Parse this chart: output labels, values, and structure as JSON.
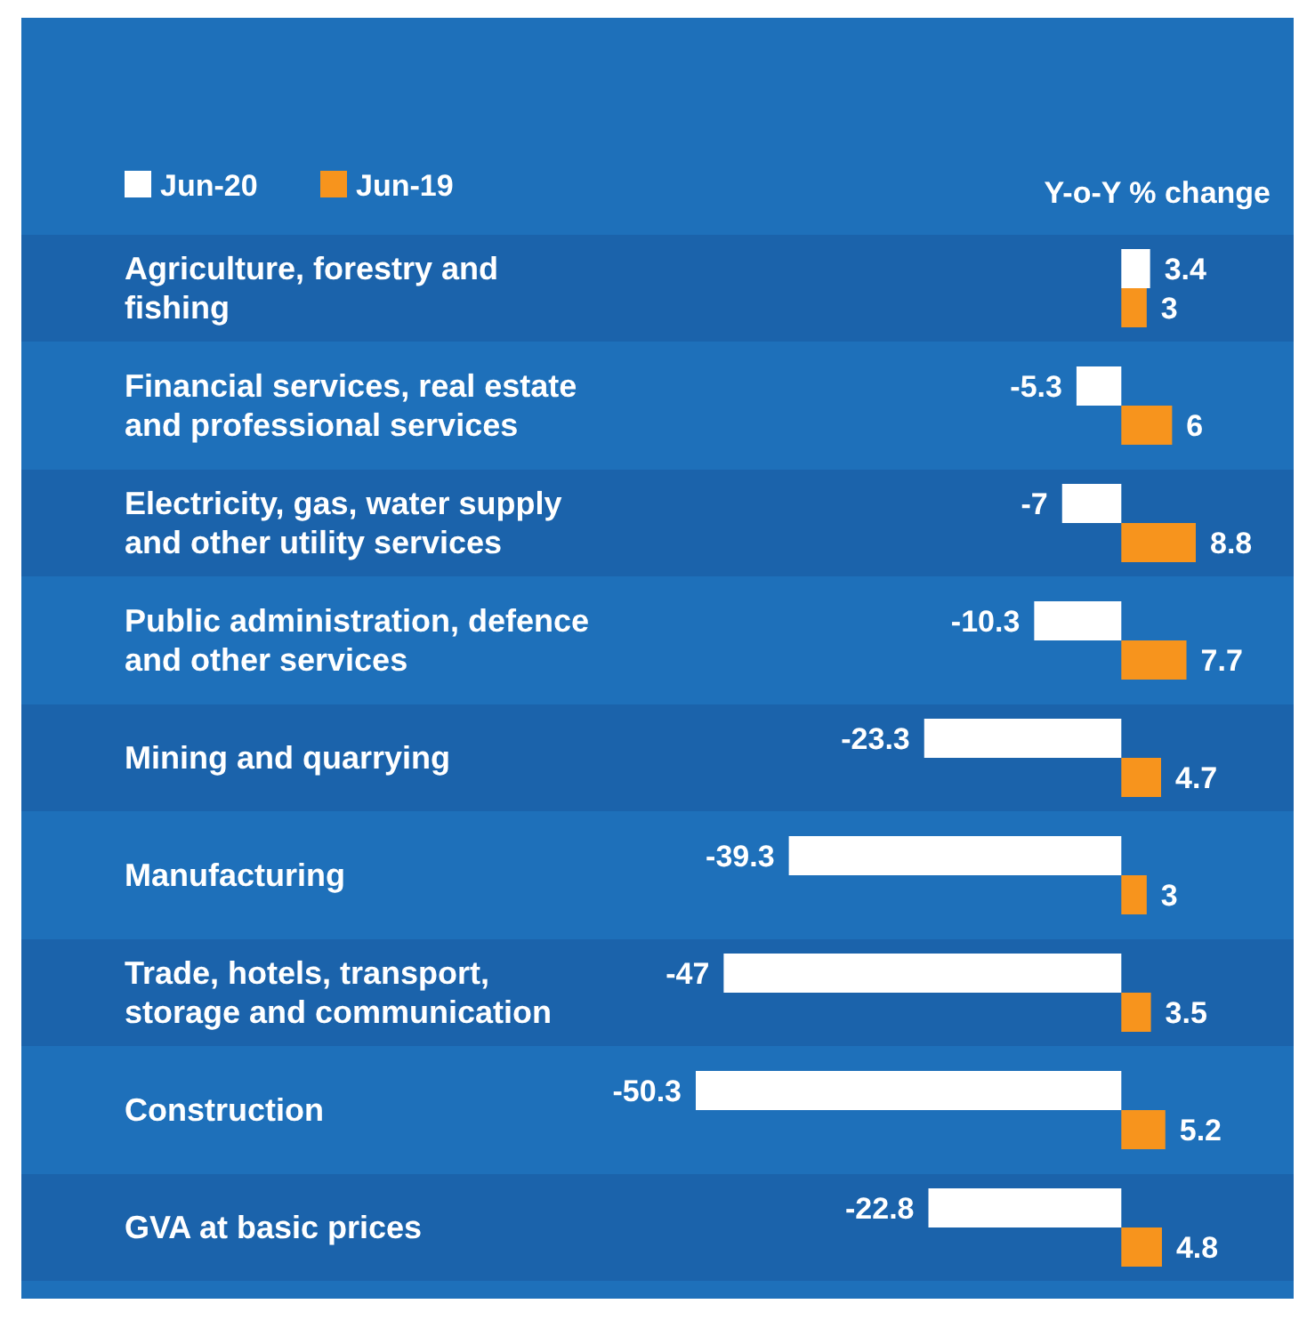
{
  "chart_data": {
    "type": "bar",
    "orientation": "horizontal",
    "title": "Y-o-Y % change",
    "categories": [
      "Agriculture, forestry and fishing",
      "Financial services, real estate and professional services",
      "Electricity, gas, water supply and other utility services",
      "Public administration, defence and other services",
      "Mining and quarrying",
      "Manufacturing",
      "Trade, hotels, transport, storage and communication",
      "Construction",
      "GVA at basic prices"
    ],
    "series": [
      {
        "name": "Jun-20",
        "color": "#ffffff",
        "values": [
          3.4,
          -5.3,
          -7,
          -10.3,
          -23.3,
          -39.3,
          -47,
          -50.3,
          -22.8
        ]
      },
      {
        "name": "Jun-19",
        "color": "#f7941d",
        "values": [
          3,
          6,
          8.8,
          7.7,
          4.7,
          3,
          3.5,
          5.2,
          4.8
        ]
      }
    ],
    "data_labels": true,
    "legend": "top left"
  }
}
